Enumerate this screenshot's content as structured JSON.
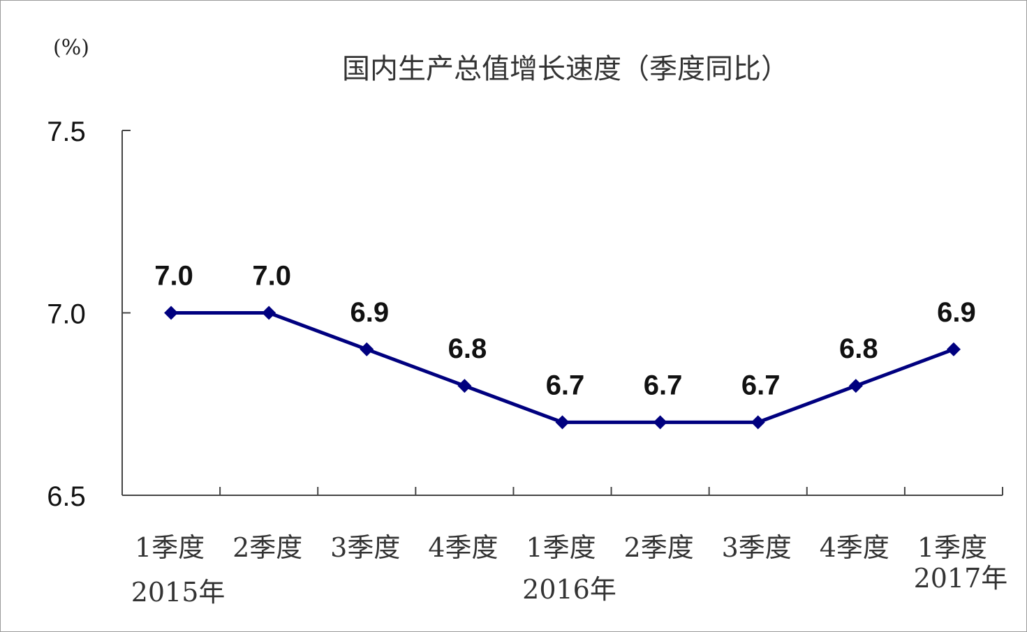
{
  "chart_data": {
    "type": "line",
    "title": "国内生产总值增长速度（季度同比）",
    "unit_label": "(%)",
    "ylim": [
      6.5,
      7.5
    ],
    "yticks": [
      "6.5",
      "7.0",
      "7.5"
    ],
    "categories": [
      "1季度",
      "2季度",
      "3季度",
      "4季度",
      "1季度",
      "2季度",
      "3季度",
      "4季度",
      "1季度"
    ],
    "year_labels": [
      {
        "text": "2015年",
        "at_index": 0
      },
      {
        "text": "2016年",
        "at_index": 4
      },
      {
        "text": "2017年",
        "at_index": 8
      }
    ],
    "series": [
      {
        "values": [
          7.0,
          7.0,
          6.9,
          6.8,
          6.7,
          6.7,
          6.7,
          6.8,
          6.9
        ],
        "labels": [
          "7.0",
          "7.0",
          "6.9",
          "6.8",
          "6.7",
          "6.7",
          "6.7",
          "6.8",
          "6.9"
        ],
        "color": "#00007f",
        "marker": "diamond"
      }
    ],
    "grid": false,
    "legend": "none"
  }
}
